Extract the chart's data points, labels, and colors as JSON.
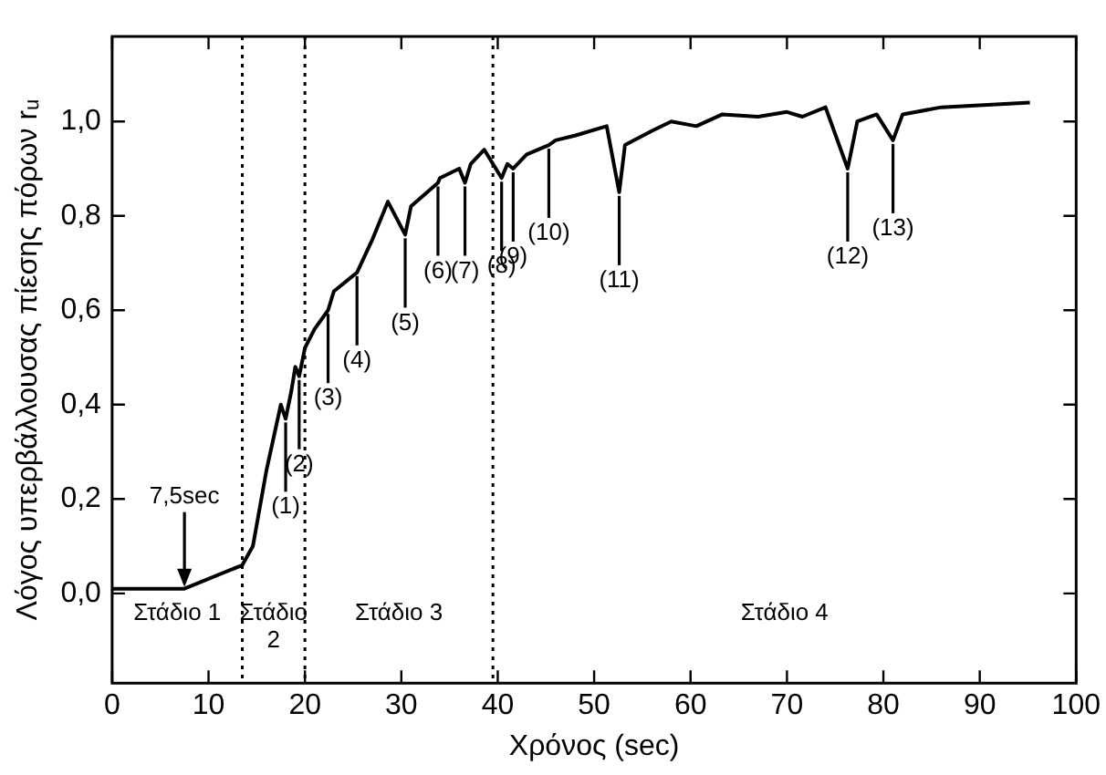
{
  "chart_data": {
    "type": "line",
    "xlabel": "Χρόνος (sec)",
    "ylabel": "Λόγος υπερβάλλουσας πίεσης πόρων rᵤ",
    "x": [
      0,
      7.5,
      13.5,
      14.6,
      16,
      17.5,
      18,
      18.6,
      19.0,
      19.4,
      20,
      21,
      22.4,
      23,
      25.4,
      27,
      28.6,
      30.4,
      31,
      33.8,
      34,
      36,
      36.6,
      37.2,
      38.6,
      40.4,
      41,
      41.6,
      43,
      45.3,
      46,
      48,
      51.3,
      52.6,
      53.2,
      56,
      58,
      60.6,
      63.3,
      67,
      70,
      71.6,
      74,
      76.3,
      77.3,
      79.3,
      81,
      82,
      86,
      95.2
    ],
    "series": [
      {
        "color": "#000000",
        "values": [
          0.01,
          0.01,
          0.06,
          0.1,
          0.26,
          0.4,
          0.37,
          0.43,
          0.48,
          0.46,
          0.52,
          0.56,
          0.6,
          0.64,
          0.68,
          0.75,
          0.83,
          0.76,
          0.82,
          0.87,
          0.88,
          0.9,
          0.87,
          0.91,
          0.94,
          0.88,
          0.91,
          0.9,
          0.93,
          0.95,
          0.96,
          0.97,
          0.99,
          0.85,
          0.95,
          0.98,
          1.0,
          0.99,
          1.015,
          1.01,
          1.02,
          1.01,
          1.03,
          0.9,
          1.0,
          1.015,
          0.96,
          1.015,
          1.03,
          1.04
        ]
      }
    ],
    "xlim": [
      0,
      100
    ],
    "xticks": [
      0,
      10,
      20,
      30,
      40,
      50,
      60,
      70,
      80,
      90,
      100
    ],
    "ylim": [
      -0.19,
      1.18
    ],
    "yticks": [
      {
        "value": 0,
        "label": "0,0"
      },
      {
        "value": 0.2,
        "label": "0,2"
      },
      {
        "value": 0.4,
        "label": "0,4"
      },
      {
        "value": 0.6,
        "label": "0,6"
      },
      {
        "value": 0.8,
        "label": "0,8"
      },
      {
        "value": 1.0,
        "label": "1,0"
      }
    ],
    "grid": false,
    "legend": false,
    "marker": "none",
    "line_style": "solid",
    "ref_lines": [
      {
        "axis": "x",
        "value": 13.5,
        "color": "#000000",
        "line_style": "dotted"
      },
      {
        "axis": "x",
        "value": 20,
        "color": "#000000",
        "line_style": "dotted"
      },
      {
        "axis": "x",
        "value": 39.5,
        "color": "#000000",
        "line_style": "dotted"
      }
    ],
    "annotations": [
      {
        "text": "7,5sec",
        "x": 7.5,
        "y": 0.01
      },
      "Στάδιο 1",
      "Στάδιο 2",
      "Στάδιο 3",
      "Στάδιο 4",
      {
        "text": "(1)",
        "x": 18,
        "y": 0.37
      },
      {
        "text": "(2)",
        "x": 19.4,
        "y": 0.46
      },
      {
        "text": "(3)",
        "x": 22.4,
        "y": 0.6
      },
      {
        "text": "(4)",
        "x": 25.4,
        "y": 0.68
      },
      {
        "text": "(5)",
        "x": 30.4,
        "y": 0.76
      },
      {
        "text": "(6)",
        "x": 33.8,
        "y": 0.87
      },
      {
        "text": "(7)",
        "x": 36.6,
        "y": 0.87
      },
      {
        "text": "(8)",
        "x": 40.4,
        "y": 0.88
      },
      {
        "text": "(9)",
        "x": 41.6,
        "y": 0.9
      },
      {
        "text": "(10)",
        "x": 45.3,
        "y": 0.95
      },
      {
        "text": "(11)",
        "x": 52.6,
        "y": 0.85
      },
      {
        "text": "(12)",
        "x": 76.3,
        "y": 0.9
      },
      {
        "text": "(13)",
        "x": 81,
        "y": 0.96
      }
    ]
  }
}
